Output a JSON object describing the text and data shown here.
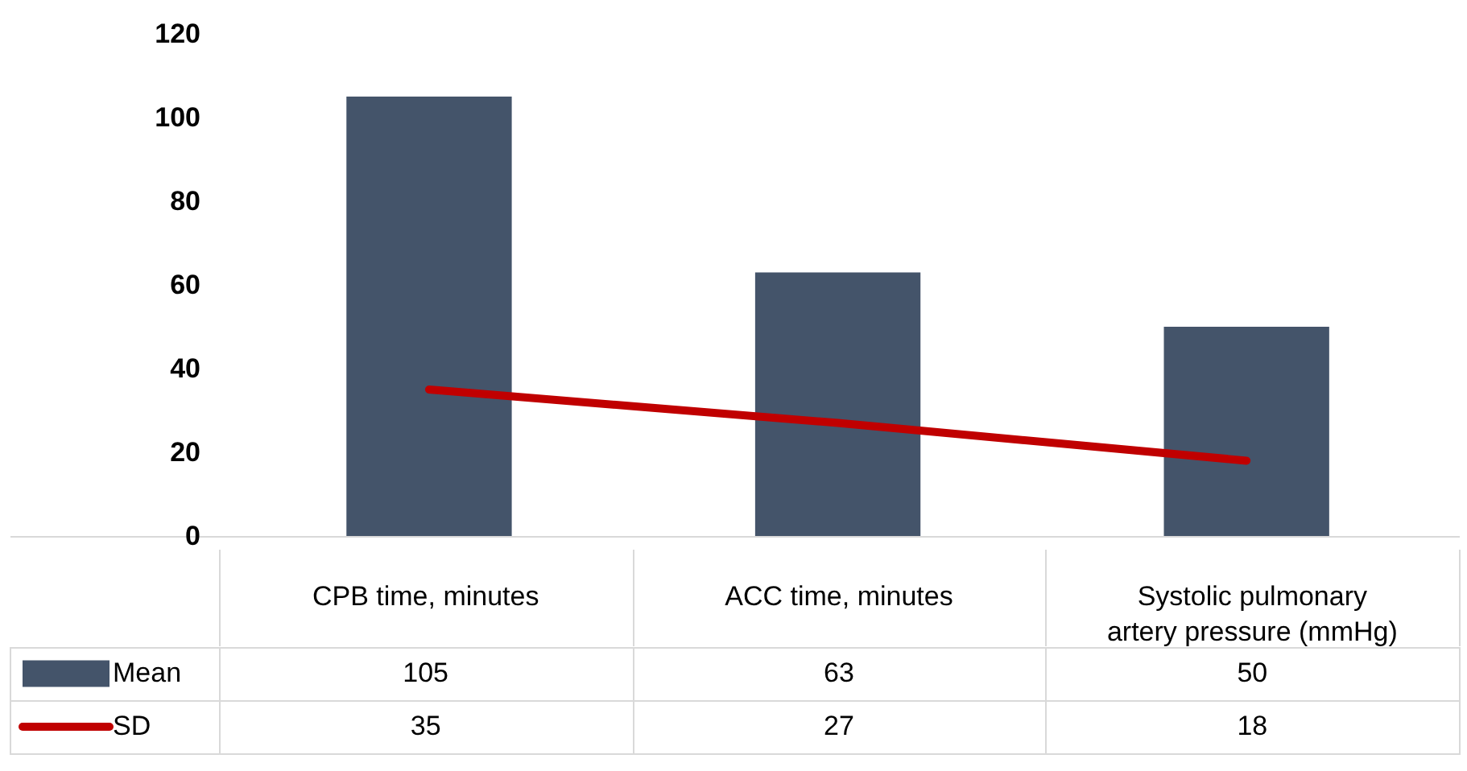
{
  "chart_data": {
    "type": "bar",
    "categories": [
      "CPB time,  minutes",
      "ACC time, minutes",
      "Systolic pulmonary artery pressure (mmHg)"
    ],
    "series": [
      {
        "name": "Mean",
        "color": "#44546a",
        "values": [
          105,
          63,
          50
        ]
      },
      {
        "name": "SD",
        "type": "line",
        "color": "#c00000",
        "values": [
          35,
          27,
          18
        ]
      }
    ],
    "ylim": [
      0,
      120
    ],
    "yticks": [
      0,
      20,
      40,
      60,
      80,
      100,
      120
    ],
    "data_labels": true,
    "legend": "bottom left"
  }
}
